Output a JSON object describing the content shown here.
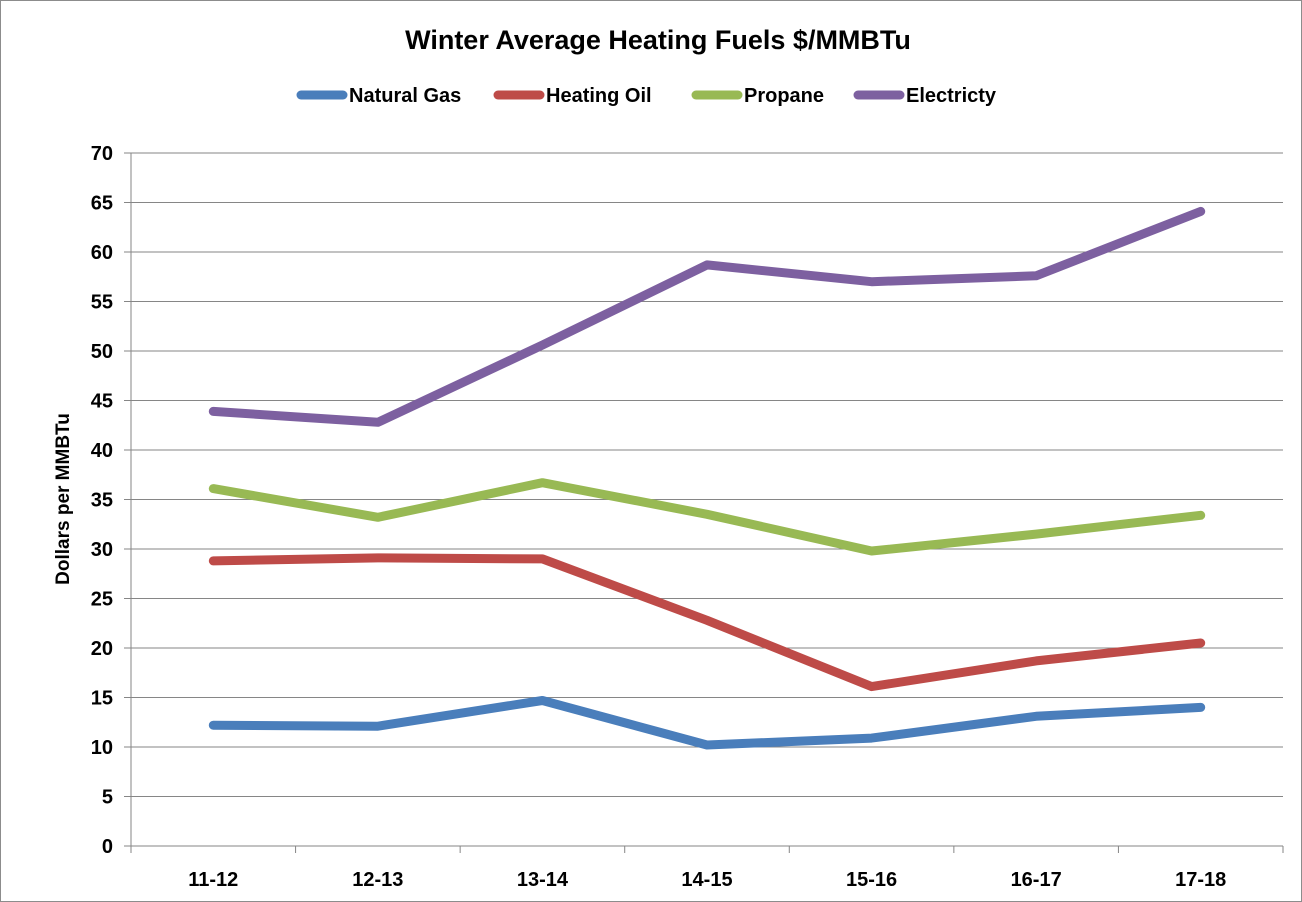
{
  "chart_data": {
    "type": "line",
    "title": "Winter Average Heating Fuels $/MMBTu",
    "xlabel": "",
    "ylabel": "Dollars per  MMBTu",
    "ylim": [
      0,
      70
    ],
    "ytick_step": 5,
    "grid": true,
    "legend_position": "top",
    "categories": [
      "11-12",
      "12-13",
      "13-14",
      "14-15",
      "15-16",
      "16-17",
      "17-18"
    ],
    "series": [
      {
        "name": "Natural Gas",
        "color": "#4a7ebb",
        "values": [
          12.2,
          12.1,
          14.7,
          10.2,
          10.9,
          13.1,
          14.0
        ]
      },
      {
        "name": "Heating Oil",
        "color": "#be4b48",
        "values": [
          28.8,
          29.1,
          29.0,
          22.8,
          16.1,
          18.7,
          20.5
        ]
      },
      {
        "name": "Propane",
        "color": "#98b954",
        "values": [
          36.1,
          33.2,
          36.7,
          33.5,
          29.8,
          31.5,
          33.4
        ]
      },
      {
        "name": "Electricty",
        "color": "#7d60a0",
        "values": [
          43.9,
          42.8,
          50.6,
          58.7,
          57.0,
          57.6,
          64.1
        ]
      }
    ]
  }
}
